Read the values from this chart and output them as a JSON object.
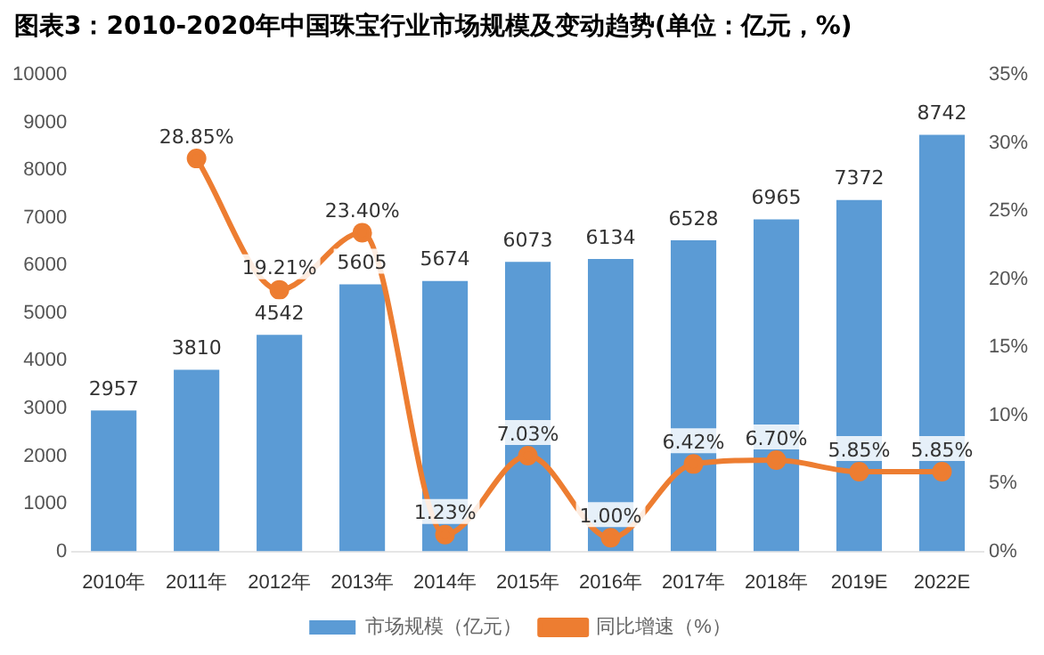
{
  "chart_data": {
    "type": "bar",
    "title": "图表3：2010-2020年中国珠宝行业市场规模及变动趋势(单位：亿元，%)",
    "categories": [
      "2010年",
      "2011年",
      "2012年",
      "2013年",
      "2014年",
      "2015年",
      "2016年",
      "2017年",
      "2018年",
      "2019E",
      "2022E"
    ],
    "series": [
      {
        "name": "市场规模（亿元）",
        "color": "#5b9bd5",
        "values": [
          2957,
          3810,
          4542,
          5605,
          5674,
          6073,
          6134,
          6528,
          6965,
          7372,
          8742
        ],
        "value_labels": [
          "2957",
          "3810",
          "4542",
          "5605",
          "5674",
          "6073",
          "6134",
          "6528",
          "6965",
          "7372",
          "8742"
        ]
      },
      {
        "name": "同比增速（%）",
        "type": "line",
        "axis": "y2",
        "color": "#ed7d31",
        "values": [
          null,
          28.85,
          19.21,
          23.4,
          1.23,
          7.03,
          1.0,
          6.42,
          6.7,
          5.85,
          5.85
        ],
        "value_labels": [
          null,
          "28.85%",
          "19.21%",
          "23.40%",
          "1.23%",
          "7.03%",
          "1.00%",
          "6.42%",
          "6.70%",
          "5.85%",
          "5.85%"
        ]
      }
    ],
    "ylim": [
      0,
      10000
    ],
    "yticks": [
      0,
      1000,
      2000,
      3000,
      4000,
      5000,
      6000,
      7000,
      8000,
      9000,
      10000
    ],
    "y2lim": [
      0,
      35
    ],
    "y2ticks": [
      {
        "value": 0,
        "label": "0%"
      },
      {
        "value": 5,
        "label": "5%"
      },
      {
        "value": 10,
        "label": "10%"
      },
      {
        "value": 15,
        "label": "15%"
      },
      {
        "value": 20,
        "label": "20%"
      },
      {
        "value": 25,
        "label": "25%"
      },
      {
        "value": 30,
        "label": "30%"
      },
      {
        "value": 35,
        "label": "35%"
      }
    ],
    "legend": "bottom",
    "marker": "circle"
  }
}
